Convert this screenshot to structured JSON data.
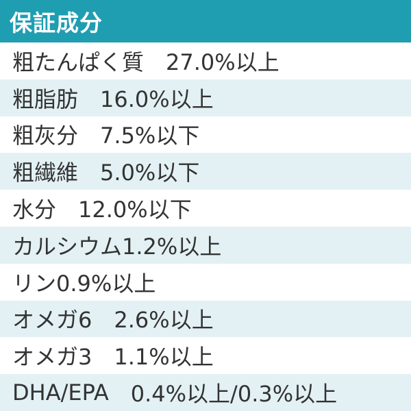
{
  "title": "保証成分",
  "rows": [
    {
      "name": "粗たんぱく質",
      "gap": "　",
      "value": "27.0%以上"
    },
    {
      "name": "粗脂肪",
      "gap": "　",
      "value": "16.0%以上"
    },
    {
      "name": "粗灰分",
      "gap": "　",
      "value": "7.5%以下"
    },
    {
      "name": "粗繊維",
      "gap": "　",
      "value": "5.0%以下"
    },
    {
      "name": "水分",
      "gap": "　",
      "value": "12.0%以下"
    },
    {
      "name": "カルシウム",
      "gap": " ",
      "value": "1.2%以上"
    },
    {
      "name": "リン",
      "gap": " ",
      "value": "0.9%以上"
    },
    {
      "name": "オメガ6",
      "gap": "　",
      "value": "2.6%以上"
    },
    {
      "name": "オメガ3",
      "gap": "　",
      "value": "1.1%以上"
    },
    {
      "name": "DHA/EPA",
      "gap": "　",
      "value": "0.4%以上/0.3%以上"
    }
  ],
  "colors": {
    "header_bg": "#1f9eb2",
    "alt_row_bg": "#e3f1f4",
    "text": "#333333"
  }
}
